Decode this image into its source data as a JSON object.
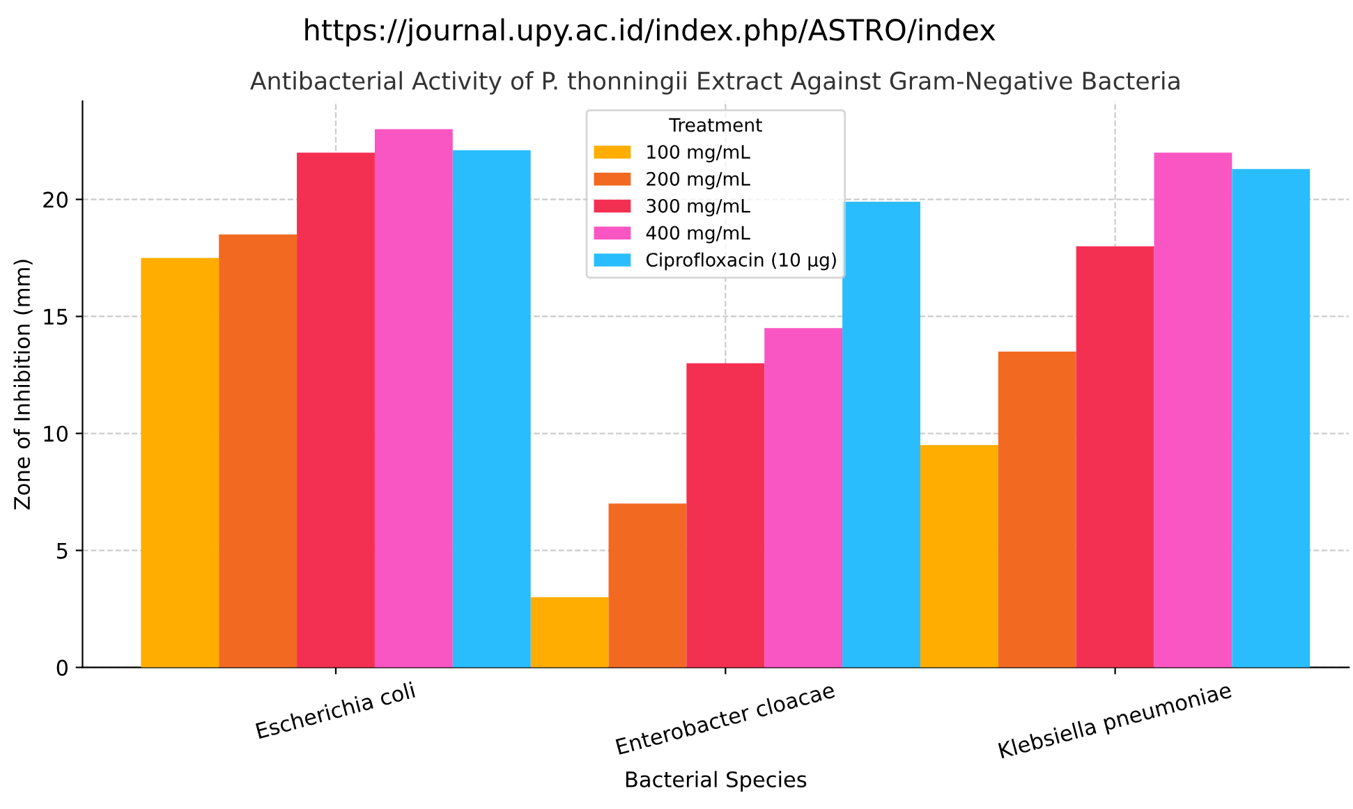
{
  "chart_data": {
    "type": "bar",
    "title": "Antibacterial Activity of P. thonningii Extract Against Gram-Negative Bacteria",
    "xlabel": "Bacterial Species",
    "ylabel": "Zone of Inhibition (mm)",
    "legend_title": "Treatment",
    "annotations": [
      "https://journal.upy.ac.id/index.php/ASTRO/index"
    ],
    "categories": [
      "Escherichia coli",
      "Enterobacter cloacae",
      "Klebsiella pneumoniae"
    ],
    "series": [
      {
        "name": "100 mg/mL",
        "color": "#ffad00",
        "values": [
          17.5,
          3,
          9.5
        ]
      },
      {
        "name": "200 mg/mL",
        "color": "#f26a21",
        "values": [
          18.5,
          7,
          13.5
        ]
      },
      {
        "name": "300 mg/mL",
        "color": "#f43052",
        "values": [
          22,
          13,
          18
        ]
      },
      {
        "name": "400 mg/mL",
        "color": "#f956c3",
        "values": [
          23,
          14.5,
          22
        ]
      },
      {
        "name": "Ciprofloxacin (10 µg)",
        "color": "#29bdfd",
        "values": [
          22.1,
          19.9,
          21.3
        ]
      }
    ],
    "ylim": [
      0,
      24.2
    ],
    "yticks": [
      0,
      5,
      10,
      15,
      20
    ],
    "grid": true,
    "legend": "top"
  }
}
